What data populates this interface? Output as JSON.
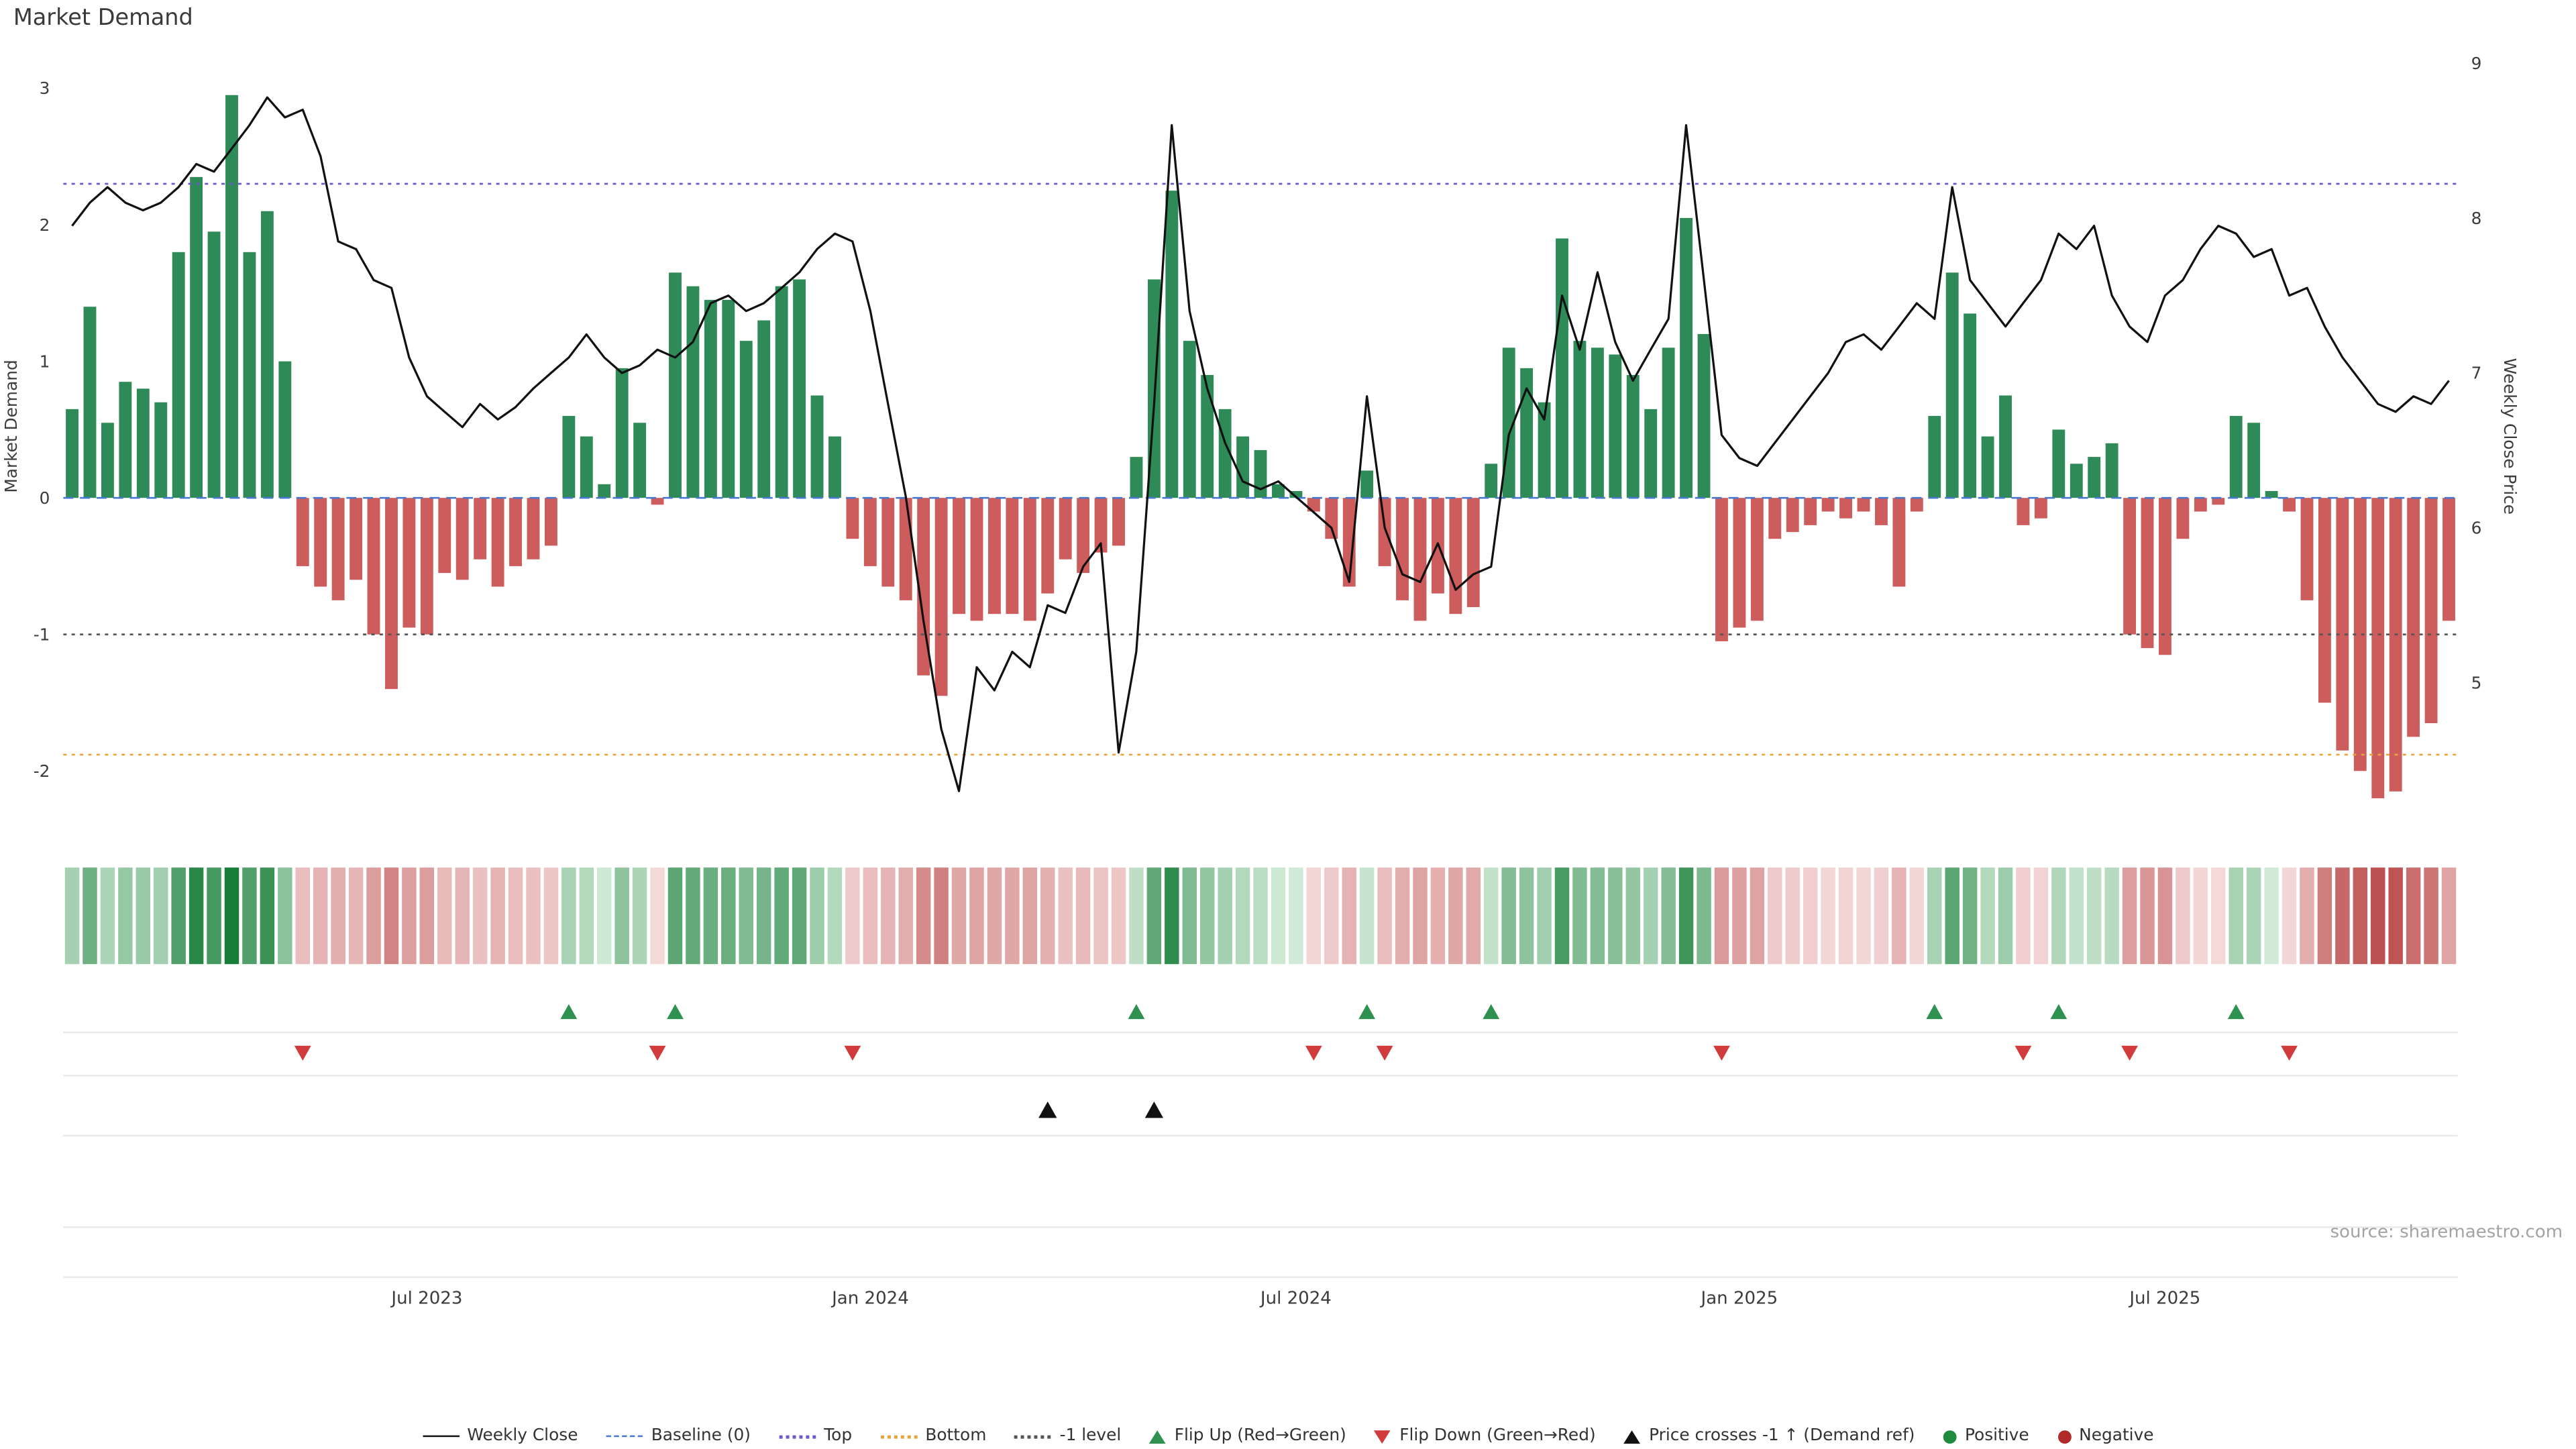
{
  "title": "Market Demand",
  "source": "source: sharemaestro.com",
  "axes": {
    "left_label": "Market Demand",
    "right_label": "Weekly Close Price",
    "left_ticks": [
      3,
      2,
      1,
      0,
      -1,
      -2
    ],
    "right_ticks": [
      9,
      8,
      7,
      6,
      5
    ],
    "x_ticks": [
      {
        "label": "Jul 2023",
        "index": 20
      },
      {
        "label": "Jan 2024",
        "index": 45
      },
      {
        "label": "Jul 2024",
        "index": 69
      },
      {
        "label": "Jan 2025",
        "index": 94
      },
      {
        "label": "Jul 2025",
        "index": 118
      }
    ]
  },
  "colors": {
    "positive_bar": "#2e8b57",
    "negative_bar": "#cd5c5c",
    "price_line": "#111111",
    "baseline": "#4878cf",
    "top_line": "#6a5acd",
    "bottom_line": "#e8a33d",
    "minus1_line": "#555555",
    "flip_up": "#2e9150",
    "flip_down": "#d23b3b",
    "price_cross": "#111111",
    "heat_green_light": "#d4ecd9",
    "heat_green_dark": "#177d38",
    "heat_red_light": "#f6dcdc",
    "heat_red_dark": "#b23939"
  },
  "chart_data": {
    "type": "combo",
    "frequency": "weekly",
    "left_axis_range": [
      -2.25,
      3.27
    ],
    "right_axis_range": [
      4.25,
      9.09
    ],
    "grid": "off",
    "legend_position": "bottom-center",
    "series": [
      {
        "name": "Market Demand",
        "type": "bar",
        "axis": "left",
        "values": [
          0.65,
          1.4,
          0.55,
          0.85,
          0.8,
          0.7,
          1.8,
          2.35,
          1.95,
          2.95,
          1.8,
          2.1,
          1.0,
          -0.5,
          -0.65,
          -0.75,
          -0.6,
          -1.0,
          -1.4,
          -0.95,
          -1.0,
          -0.55,
          -0.6,
          -0.45,
          -0.65,
          -0.5,
          -0.45,
          -0.35,
          0.6,
          0.45,
          0.1,
          0.95,
          0.55,
          -0.05,
          1.65,
          1.55,
          1.45,
          1.45,
          1.15,
          1.3,
          1.55,
          1.6,
          0.75,
          0.45,
          -0.3,
          -0.5,
          -0.65,
          -0.75,
          -1.3,
          -1.45,
          -0.85,
          -0.9,
          -0.85,
          -0.85,
          -0.9,
          -0.7,
          -0.45,
          -0.55,
          -0.4,
          -0.35,
          0.3,
          1.6,
          2.25,
          1.15,
          0.9,
          0.65,
          0.45,
          0.35,
          0.1,
          0.05,
          -0.1,
          -0.3,
          -0.65,
          0.2,
          -0.5,
          -0.75,
          -0.9,
          -0.7,
          -0.85,
          -0.8,
          0.25,
          1.1,
          0.95,
          0.7,
          1.9,
          1.15,
          1.1,
          1.05,
          0.9,
          0.65,
          1.1,
          2.05,
          1.2,
          -1.05,
          -0.95,
          -0.9,
          -0.3,
          -0.25,
          -0.2,
          -0.1,
          -0.15,
          -0.1,
          -0.2,
          -0.65,
          -0.1,
          0.6,
          1.65,
          1.35,
          0.45,
          0.75,
          -0.2,
          -0.15,
          0.5,
          0.25,
          0.3,
          0.4,
          -1.0,
          -1.1,
          -1.15,
          -0.3,
          -0.1,
          -0.05,
          0.6,
          0.55,
          0.05,
          -0.1,
          -0.75,
          -1.5,
          -1.85,
          -2.0,
          -2.2,
          -2.15,
          -1.75,
          -1.65,
          -0.9
        ]
      },
      {
        "name": "Weekly Close",
        "type": "line",
        "axis": "right",
        "values": [
          7.95,
          8.1,
          8.2,
          8.1,
          8.05,
          8.1,
          8.2,
          8.35,
          8.3,
          8.45,
          8.6,
          8.78,
          8.65,
          8.7,
          8.4,
          7.85,
          7.8,
          7.6,
          7.55,
          7.1,
          6.85,
          6.75,
          6.65,
          6.8,
          6.7,
          6.78,
          6.9,
          7.0,
          7.1,
          7.25,
          7.1,
          7.0,
          7.05,
          7.15,
          7.1,
          7.2,
          7.45,
          7.5,
          7.4,
          7.45,
          7.55,
          7.65,
          7.8,
          7.9,
          7.85,
          7.4,
          6.8,
          6.2,
          5.4,
          4.7,
          4.3,
          5.1,
          4.95,
          5.2,
          5.1,
          5.5,
          5.45,
          5.75,
          5.9,
          4.55,
          5.2,
          6.8,
          8.6,
          7.4,
          6.9,
          6.55,
          6.3,
          6.25,
          6.3,
          6.2,
          6.1,
          6.0,
          5.65,
          6.85,
          6.0,
          5.7,
          5.65,
          5.9,
          5.6,
          5.7,
          5.75,
          6.6,
          6.9,
          6.7,
          7.5,
          7.15,
          7.65,
          7.2,
          6.95,
          7.15,
          7.35,
          8.6,
          7.6,
          6.6,
          6.45,
          6.4,
          6.55,
          6.7,
          6.85,
          7.0,
          7.2,
          7.25,
          7.15,
          7.3,
          7.45,
          7.35,
          8.2,
          7.6,
          7.45,
          7.3,
          7.45,
          7.6,
          7.9,
          7.8,
          7.95,
          7.5,
          7.3,
          7.2,
          7.5,
          7.6,
          7.8,
          7.95,
          7.9,
          7.75,
          7.8,
          7.5,
          7.55,
          7.3,
          7.1,
          6.95,
          6.8,
          6.75,
          6.85,
          6.8,
          6.95
        ]
      }
    ],
    "reference_lines": [
      {
        "name": "Baseline (0)",
        "value": 0,
        "style": "dashed",
        "color": "#4878cf"
      },
      {
        "name": "Top",
        "value": 2.3,
        "style": "dotted",
        "color": "#6a5acd"
      },
      {
        "name": "Bottom",
        "value": -1.88,
        "style": "dotted",
        "color": "#e8a33d"
      },
      {
        "name": "-1 level",
        "value": -1,
        "style": "dotted",
        "color": "#555555"
      }
    ],
    "markers": {
      "flip_up": [
        28,
        34,
        60,
        73,
        80,
        105,
        112,
        122
      ],
      "flip_down": [
        13,
        33,
        44,
        70,
        74,
        93,
        110,
        116,
        125
      ],
      "price_cross": [
        55,
        61
      ]
    },
    "heatmap": {
      "description": "weekly demand sign/intensity strip",
      "source_series": "Market Demand"
    }
  },
  "legend": [
    {
      "label": "Weekly Close",
      "swatch": "line",
      "color": "#111111"
    },
    {
      "label": "Baseline (0)",
      "swatch": "dash",
      "color": "#4878cf"
    },
    {
      "label": "Top",
      "swatch": "dot",
      "color": "#6a5acd"
    },
    {
      "label": "Bottom",
      "swatch": "dot",
      "color": "#e8a33d"
    },
    {
      "label": "-1 level",
      "swatch": "dot",
      "color": "#555555"
    },
    {
      "label": "Flip Up (Red→Green)",
      "swatch": "tri-up",
      "color": "#2e9150"
    },
    {
      "label": "Flip Down (Green→Red)",
      "swatch": "tri-down",
      "color": "#d23b3b"
    },
    {
      "label": "Price crosses -1 ↑ (Demand ref)",
      "swatch": "tri-up",
      "color": "#111111"
    },
    {
      "label": "Positive",
      "swatch": "circle",
      "color": "#1e8b3d"
    },
    {
      "label": "Negative",
      "swatch": "circle",
      "color": "#b02a2a"
    }
  ]
}
